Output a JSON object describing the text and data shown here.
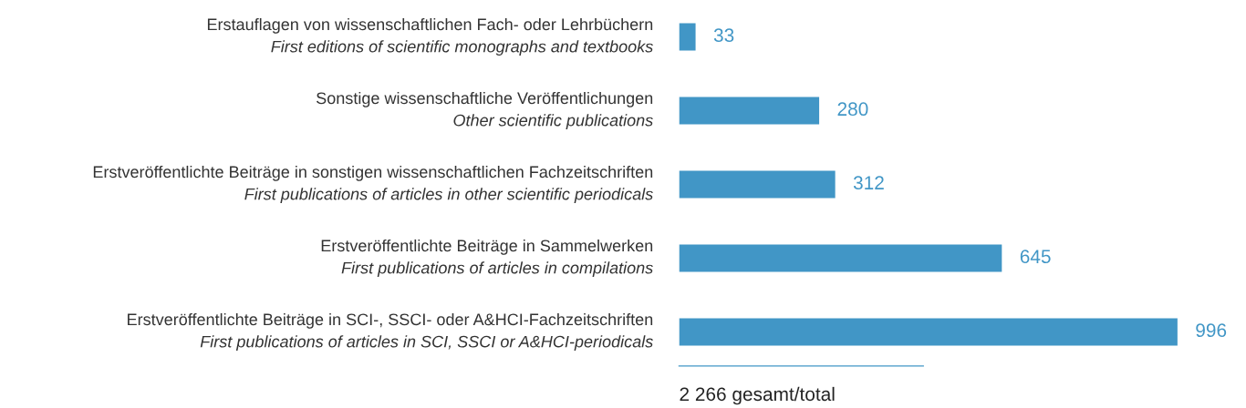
{
  "chart_data": {
    "type": "bar",
    "orientation": "horizontal",
    "categories": [
      "Erstauflagen von wissenschaftlichen Fach- oder Lehrbüchern\nFirst editions of scientific monographs and textbooks",
      "Sonstige wissenschaftliche Veröffentlichungen\nOther scientific publications",
      "Erstveröffentlichte Beiträge in sonstigen wissenschaftlichen Fachzeitschriften\nFirst publications of articles in other scientific periodicals",
      "Erstveröffentlichte Beiträge in Sammelwerken\nFirst publications of articles in compilations",
      "Erstveröffentlichte Beiträge in SCI-, SSCI- oder A&HCI-Fachzeitschriften\nFirst publications of articles in SCI, SSCI or A&HCI-periodicals"
    ],
    "values": [
      33,
      280,
      312,
      645,
      996
    ],
    "color": "#4196c6",
    "data_labels": true,
    "annotations": [
      "2 266 gesamt/total"
    ]
  }
}
